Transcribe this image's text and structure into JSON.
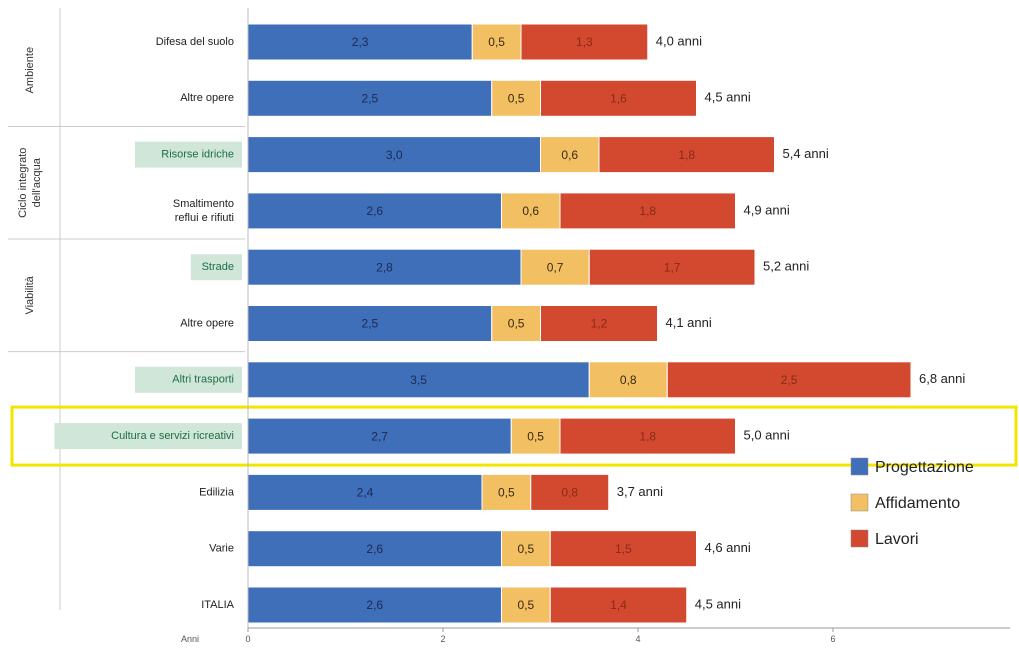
{
  "chart_data": {
    "type": "bar",
    "orientation": "horizontal",
    "stacked": true,
    "categories": [
      "Difesa del suolo",
      "Altre opere",
      "Risorse idriche",
      "Smaltimento reflui e rifiuti",
      "Strade",
      "Altre opere",
      "Altri trasporti",
      "Cultura e servizi ricreativi",
      "Edilizia",
      "Varie",
      "ITALIA"
    ],
    "category_lines": [
      [
        "Difesa del suolo"
      ],
      [
        "Altre opere"
      ],
      [
        "Risorse idriche"
      ],
      [
        "Smaltimento",
        "reflui e rifiuti"
      ],
      [
        "Strade"
      ],
      [
        "Altre opere"
      ],
      [
        "Altri trasporti"
      ],
      [
        "Cultura e servizi ricreativi"
      ],
      [
        "Edilizia"
      ],
      [
        "Varie"
      ],
      [
        "ITALIA"
      ]
    ],
    "highlighted_categories": [
      2,
      4,
      6,
      7
    ],
    "boxed_category": 7,
    "series": [
      {
        "name": "Progettazione",
        "color": "#3f6fb8",
        "values": [
          2.3,
          2.5,
          3.0,
          2.6,
          2.8,
          2.5,
          3.5,
          2.7,
          2.4,
          2.6,
          2.6
        ],
        "labels": [
          "2,3",
          "2,5",
          "3,0",
          "2,6",
          "2,8",
          "2,5",
          "3,5",
          "2,7",
          "2,4",
          "2,6",
          "2,6"
        ]
      },
      {
        "name": "Affidamento",
        "color": "#f2bf63",
        "values": [
          0.5,
          0.5,
          0.6,
          0.6,
          0.7,
          0.5,
          0.8,
          0.5,
          0.5,
          0.5,
          0.5
        ],
        "labels": [
          "0,5",
          "0,5",
          "0,6",
          "0,6",
          "0,7",
          "0,5",
          "0,8",
          "0,5",
          "0,5",
          "0,5",
          "0,5"
        ]
      },
      {
        "name": "Lavori",
        "color": "#d2492f",
        "values": [
          1.3,
          1.6,
          1.8,
          1.8,
          1.7,
          1.2,
          2.5,
          1.8,
          0.8,
          1.5,
          1.4
        ],
        "labels": [
          "1,3",
          "1,6",
          "1,8",
          "1,8",
          "1,7",
          "1,2",
          "2,5",
          "1,8",
          "0,8",
          "1,5",
          "1,4"
        ]
      }
    ],
    "totals": [
      "4,0 anni",
      "4,5 anni",
      "5,4 anni",
      "4,9 anni",
      "5,2 anni",
      "4,1 anni",
      "6,8 anni",
      "5,0 anni",
      "3,7 anni",
      "4,6 anni",
      "4,5 anni"
    ],
    "groups": [
      {
        "lines": [
          "Ambiente"
        ],
        "start": 0,
        "end": 1
      },
      {
        "lines": [
          "Ciclo integrato",
          "dell'acqua"
        ],
        "start": 2,
        "end": 3
      },
      {
        "lines": [
          "Viabilità"
        ],
        "start": 4,
        "end": 5
      }
    ],
    "xlabel": "Anni",
    "xlim": [
      0,
      7.8
    ],
    "xticks": [
      0,
      2,
      4,
      6
    ],
    "xtick_labels": [
      "0",
      "2",
      "4",
      "6"
    ],
    "grid": false,
    "legend_position": "right",
    "colors": {
      "highlight_fill": "#cfe6d8",
      "highlight_text": "#1e6e45",
      "box_border": "#f2e500",
      "axis": "#999999"
    }
  }
}
